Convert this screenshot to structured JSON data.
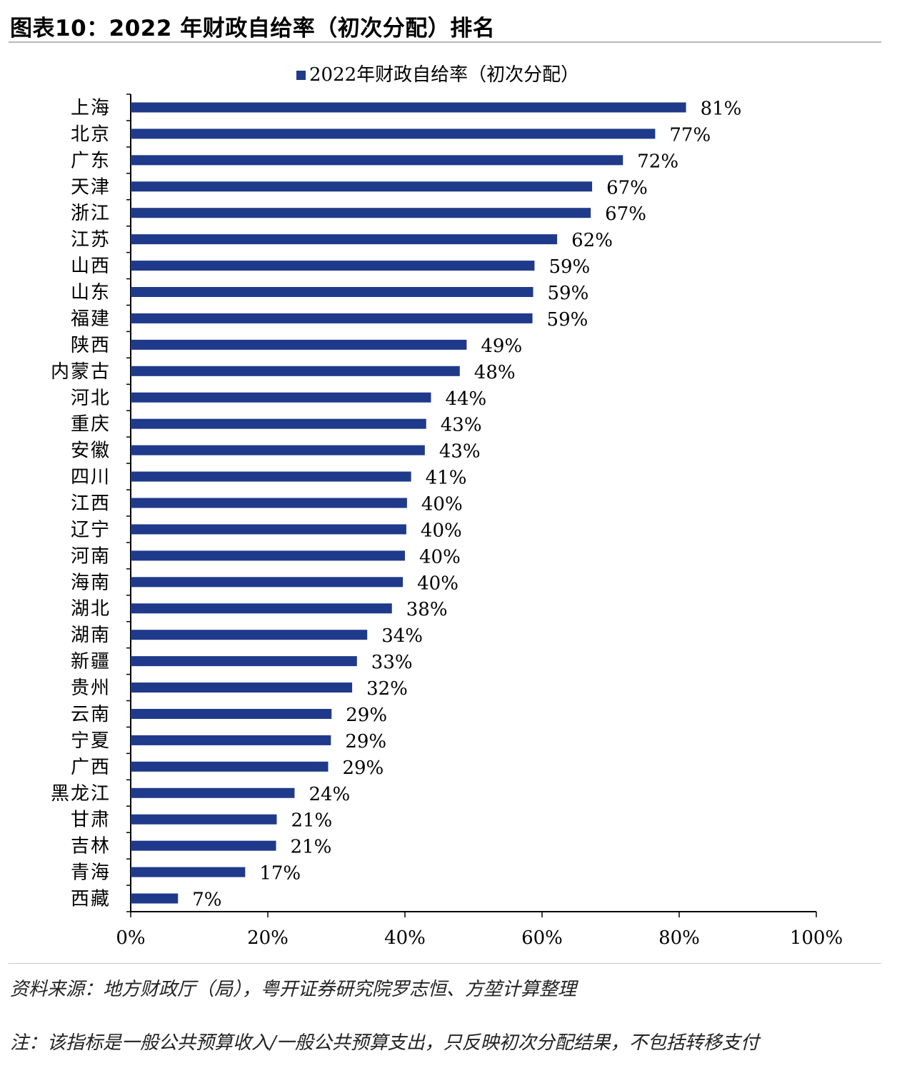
{
  "page": {
    "title": "图表10：2022 年财政自给率（初次分配）排名",
    "source": "资料来源：地方财政厅（局），粤开证券研究院罗志恒、方堃计算整理",
    "note": "注：该指标是一般公共预算收入/一般公共预算支出，只反映初次分配结果，不包括转移支付"
  },
  "chart_data": {
    "type": "bar",
    "orientation": "horizontal",
    "title": "",
    "legend": {
      "position": "top-center",
      "entries": [
        "2022年财政自给率（初次分配）"
      ]
    },
    "xlabel": "",
    "ylabel": "",
    "xlim": [
      0,
      100
    ],
    "xticks": [
      "0%",
      "20%",
      "40%",
      "60%",
      "80%",
      "100%"
    ],
    "grid": false,
    "series": [
      {
        "name": "2022年财政自给率（初次分配）",
        "color": "#1f3a8a",
        "categories": [
          "上海",
          "北京",
          "广东",
          "天津",
          "浙江",
          "江苏",
          "山西",
          "山东",
          "福建",
          "陕西",
          "内蒙古",
          "河北",
          "重庆",
          "安徽",
          "四川",
          "江西",
          "辽宁",
          "河南",
          "海南",
          "湖北",
          "湖南",
          "新疆",
          "贵州",
          "云南",
          "宁夏",
          "广西",
          "黑龙江",
          "甘肃",
          "吉林",
          "青海",
          "西藏"
        ],
        "values": [
          81.0,
          76.5,
          71.8,
          67.3,
          67.1,
          62.2,
          58.9,
          58.7,
          58.6,
          49.0,
          48.0,
          43.8,
          43.1,
          42.9,
          40.9,
          40.3,
          40.2,
          40.0,
          39.7,
          38.1,
          34.5,
          33.0,
          32.3,
          29.3,
          29.2,
          28.8,
          23.9,
          21.3,
          21.2,
          16.7,
          6.9
        ],
        "labels": [
          "81%",
          "77%",
          "72%",
          "67%",
          "67%",
          "62%",
          "59%",
          "59%",
          "59%",
          "49%",
          "48%",
          "44%",
          "43%",
          "43%",
          "41%",
          "40%",
          "40%",
          "40%",
          "40%",
          "38%",
          "34%",
          "33%",
          "32%",
          "29%",
          "29%",
          "29%",
          "24%",
          "21%",
          "21%",
          "17%",
          "7%"
        ]
      }
    ]
  }
}
